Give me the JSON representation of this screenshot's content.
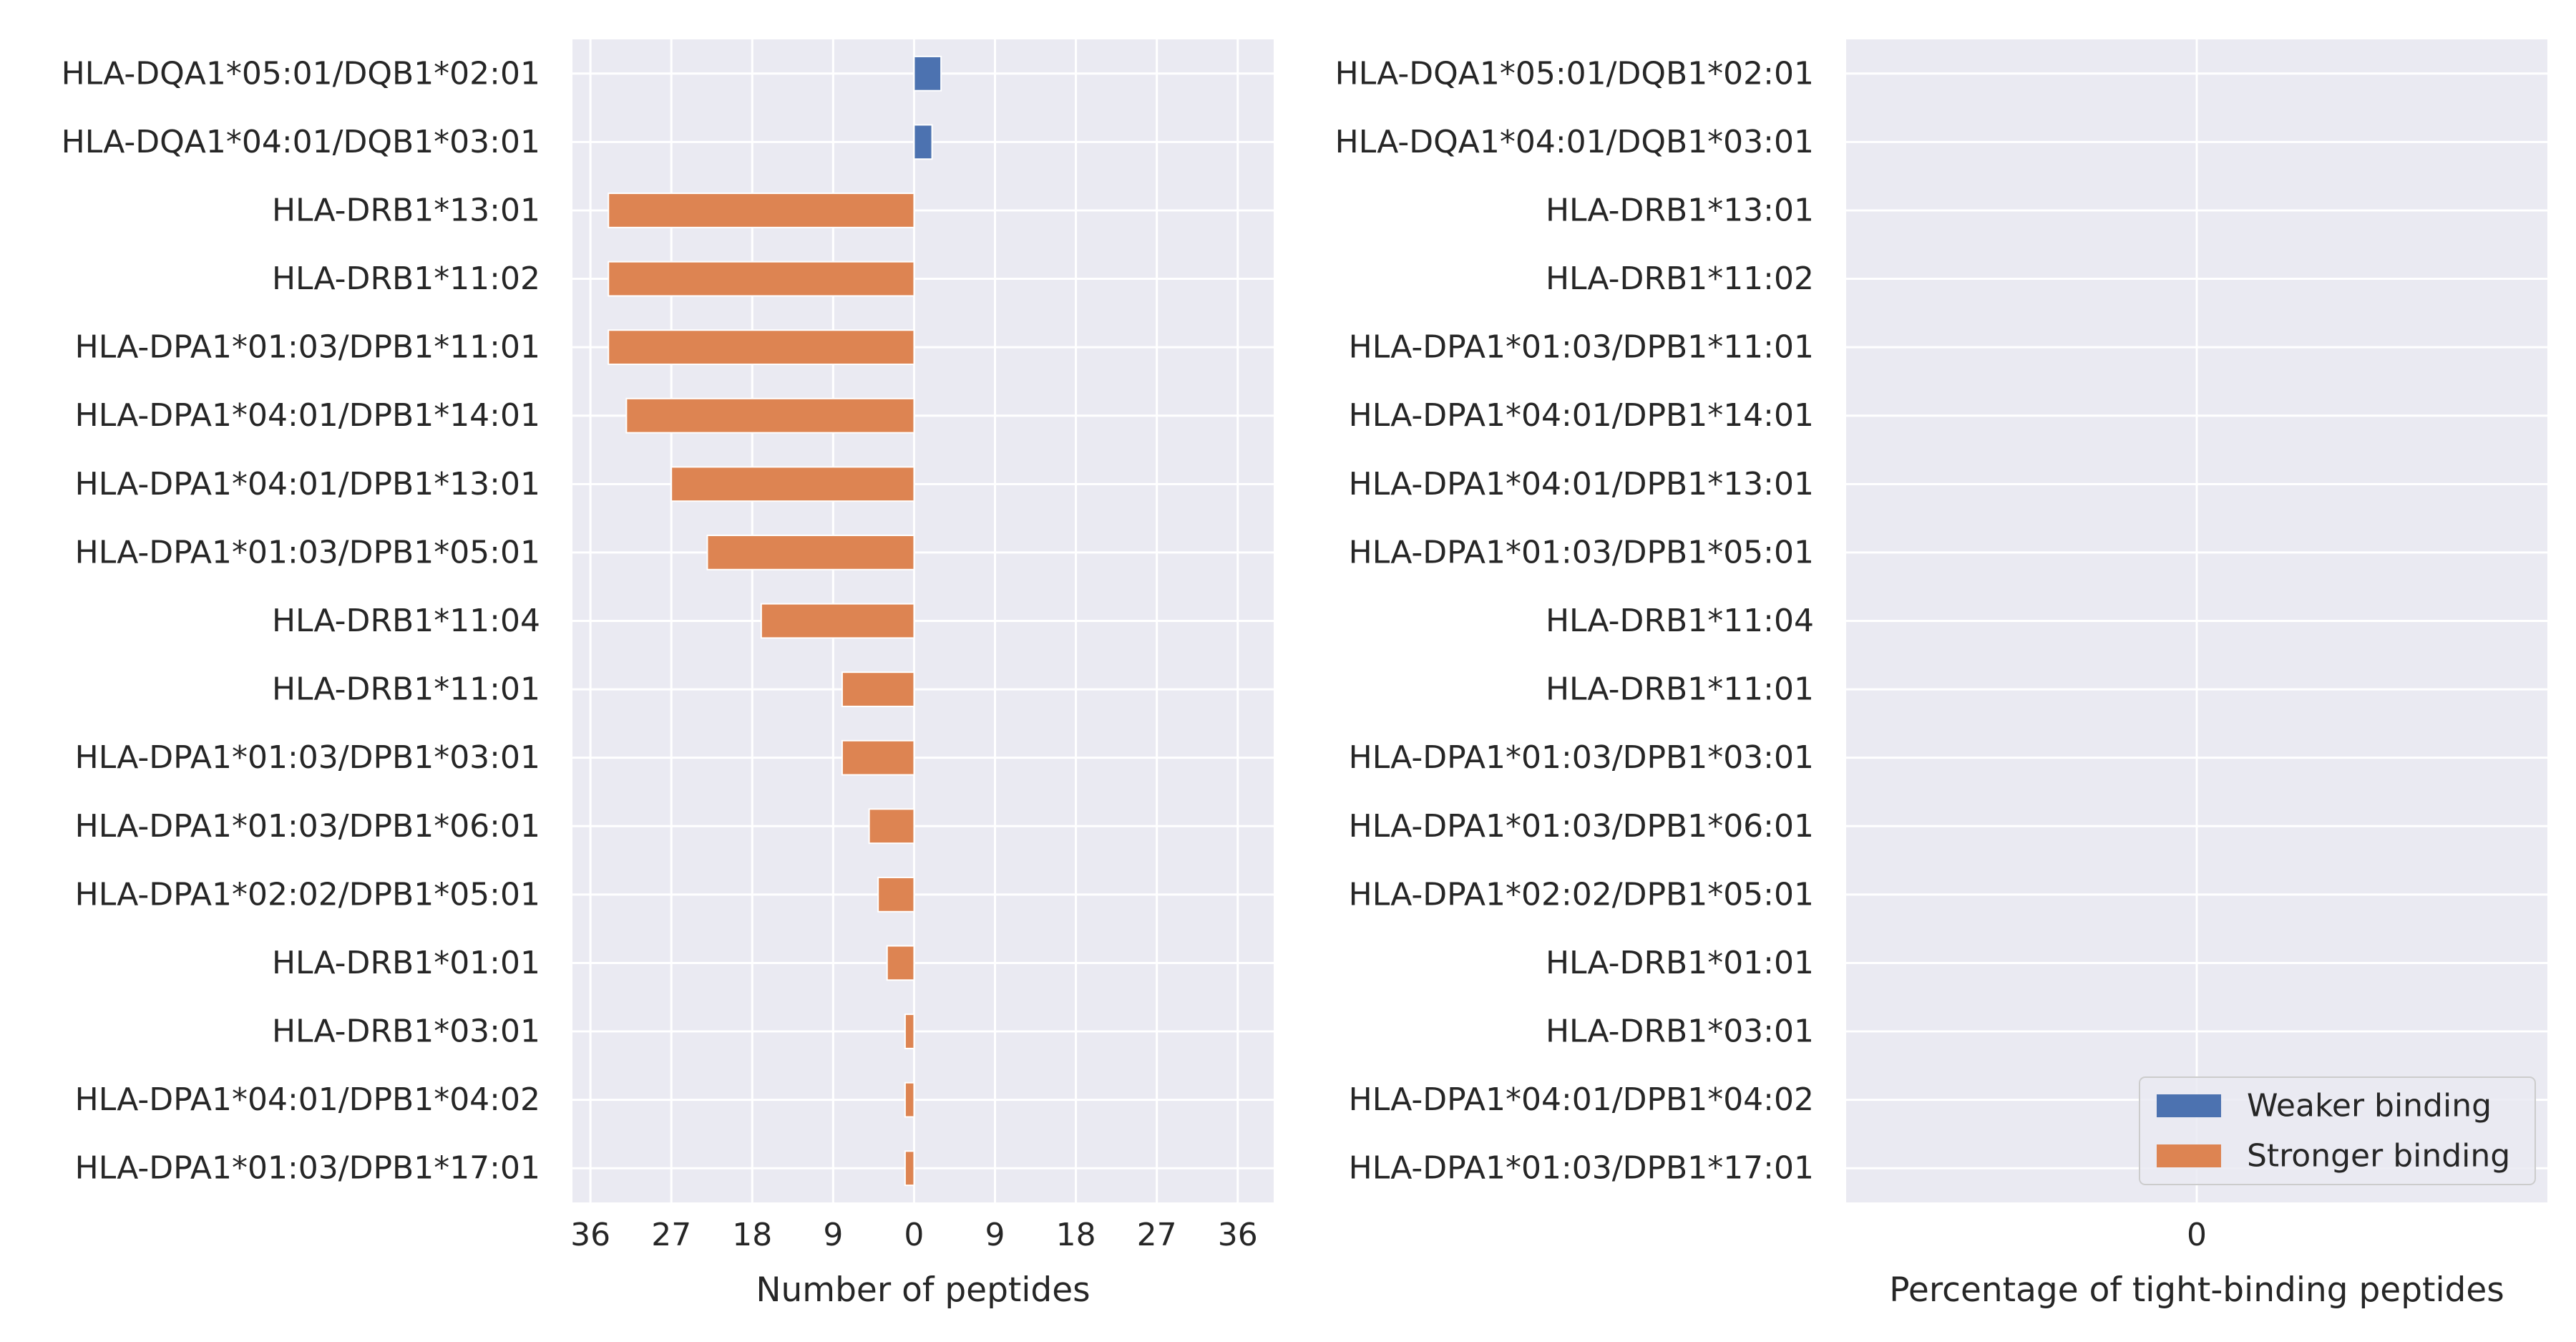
{
  "chart_data": [
    {
      "type": "bar",
      "orientation": "horizontal",
      "stacked": false,
      "categories": [
        "HLA-DQA1*05:01/DQB1*02:01",
        "HLA-DQA1*04:01/DQB1*03:01",
        "HLA-DRB1*13:01",
        "HLA-DRB1*11:02",
        "HLA-DPA1*01:03/DPB1*11:01",
        "HLA-DPA1*04:01/DPB1*14:01",
        "HLA-DPA1*04:01/DPB1*13:01",
        "HLA-DPA1*01:03/DPB1*05:01",
        "HLA-DRB1*11:04",
        "HLA-DRB1*11:01",
        "HLA-DPA1*01:03/DPB1*03:01",
        "HLA-DPA1*01:03/DPB1*06:01",
        "HLA-DPA1*02:02/DPB1*05:01",
        "HLA-DRB1*01:01",
        "HLA-DRB1*03:01",
        "HLA-DPA1*04:01/DPB1*04:02",
        "HLA-DPA1*01:03/DPB1*17:01"
      ],
      "series": [
        {
          "name": "Weaker binding",
          "color": "#4c72b0",
          "values": [
            3,
            2,
            0,
            0,
            0,
            0,
            0,
            0,
            0,
            0,
            0,
            0,
            0,
            0,
            0,
            0,
            0
          ]
        },
        {
          "name": "Stronger binding",
          "color": "#dd8452",
          "values": [
            0,
            0,
            -34,
            -34,
            -34,
            -32,
            -27,
            -23,
            -17,
            -8,
            -8,
            -5,
            -4,
            -3,
            -1,
            -1,
            -1
          ]
        }
      ],
      "xlabel": "Number of peptides",
      "xlim": [
        -38,
        40
      ],
      "xticks": [
        -36,
        -27,
        -18,
        -9,
        0,
        9,
        18,
        27,
        36
      ],
      "xtick_labels": [
        "36",
        "27",
        "18",
        "9",
        "0",
        "9",
        "18",
        "27",
        "36"
      ],
      "grid": true,
      "background": "#eaeaf2"
    },
    {
      "type": "bar",
      "orientation": "horizontal",
      "categories": [
        "HLA-DQA1*05:01/DQB1*02:01",
        "HLA-DQA1*04:01/DQB1*03:01",
        "HLA-DRB1*13:01",
        "HLA-DRB1*11:02",
        "HLA-DPA1*01:03/DPB1*11:01",
        "HLA-DPA1*04:01/DPB1*14:01",
        "HLA-DPA1*04:01/DPB1*13:01",
        "HLA-DPA1*01:03/DPB1*05:01",
        "HLA-DRB1*11:04",
        "HLA-DRB1*11:01",
        "HLA-DPA1*01:03/DPB1*03:01",
        "HLA-DPA1*01:03/DPB1*06:01",
        "HLA-DPA1*02:02/DPB1*05:01",
        "HLA-DRB1*01:01",
        "HLA-DRB1*03:01",
        "HLA-DPA1*04:01/DPB1*04:02",
        "HLA-DPA1*01:03/DPB1*17:01"
      ],
      "series": [
        {
          "name": "Weaker binding",
          "color": "#4c72b0",
          "values": [
            0,
            0,
            0,
            0,
            0,
            0,
            0,
            0,
            0,
            0,
            0,
            0,
            0,
            0,
            0,
            0,
            0
          ]
        },
        {
          "name": "Stronger binding",
          "color": "#dd8452",
          "values": [
            0,
            0,
            0,
            0,
            0,
            0,
            0,
            0,
            0,
            0,
            0,
            0,
            0,
            0,
            0,
            0,
            0
          ]
        }
      ],
      "xlabel": "Percentage of tight-binding peptides",
      "xlim": [
        -1,
        1
      ],
      "xticks": [
        0
      ],
      "xtick_labels": [
        "0"
      ],
      "grid": true,
      "background": "#eaeaf2",
      "legend": {
        "position": "lower-right",
        "entries": [
          {
            "label": "Weaker binding",
            "color": "#4c72b0"
          },
          {
            "label": "Stronger binding",
            "color": "#dd8452"
          }
        ]
      }
    }
  ]
}
